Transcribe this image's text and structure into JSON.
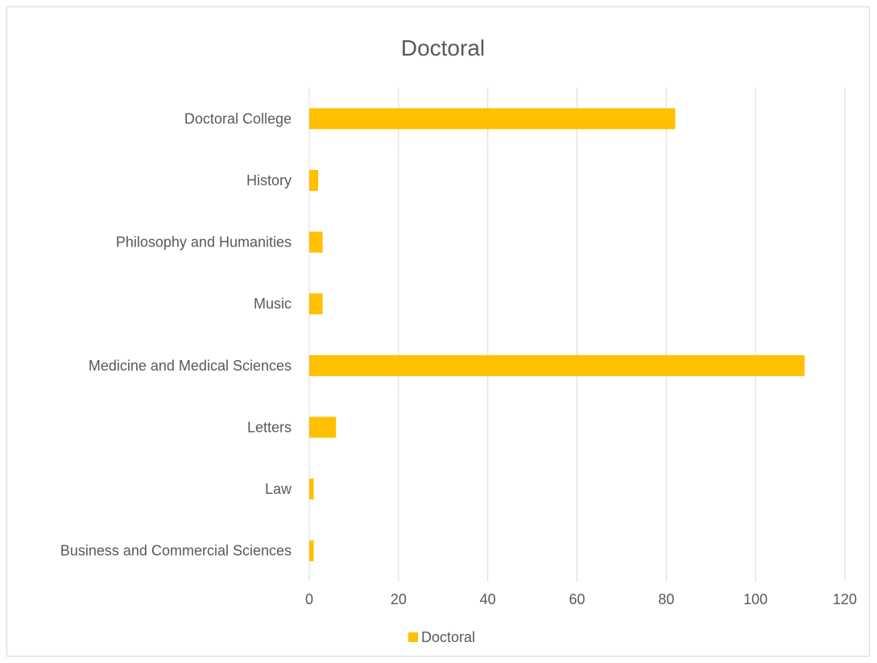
{
  "chart_data": {
    "type": "bar",
    "orientation": "horizontal",
    "title": "Doctoral",
    "categories": [
      "Doctoral College",
      "History",
      "Philosophy and Humanities",
      "Music",
      "Medicine and Medical Sciences",
      "Letters",
      "Law",
      "Business and Commercial Sciences"
    ],
    "series": [
      {
        "name": "Doctoral",
        "values": [
          82,
          2,
          3,
          3,
          111,
          6,
          1,
          1
        ],
        "color": "#FFC000"
      }
    ],
    "xlim": [
      0,
      120
    ],
    "xticks": [
      0,
      20,
      40,
      60,
      80,
      100,
      120
    ],
    "xlabel": "",
    "ylabel": "",
    "grid": "vertical",
    "legend": "bottom"
  }
}
